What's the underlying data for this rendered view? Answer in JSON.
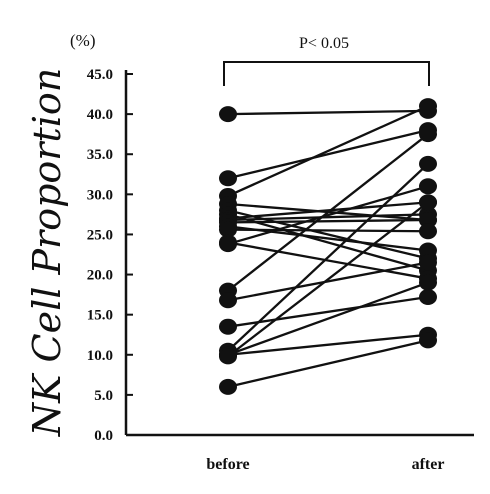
{
  "chart_data": {
    "type": "scatter",
    "subtype": "paired-slope",
    "ylabel": "NK Cell Proportion",
    "unit": "(%)",
    "categories": [
      "before",
      "after"
    ],
    "ylim": [
      0,
      45
    ],
    "yticks": [
      "0.0",
      "5.0",
      "10.0",
      "15.0",
      "20.0",
      "25.0",
      "30.0",
      "35.0",
      "40.0",
      "45.0"
    ],
    "significance": {
      "label": "P< 0.05",
      "between": [
        "before",
        "after"
      ]
    },
    "pairs": [
      {
        "before": 40.0,
        "after": 40.4
      },
      {
        "before": 32.0,
        "after": 38.0
      },
      {
        "before": 29.8,
        "after": 41.0
      },
      {
        "before": 28.8,
        "after": 26.8
      },
      {
        "before": 28.0,
        "after": 22.0
      },
      {
        "before": 27.5,
        "after": 20.5
      },
      {
        "before": 27.0,
        "after": 29.0
      },
      {
        "before": 26.8,
        "after": 27.5
      },
      {
        "before": 26.5,
        "after": 26.8
      },
      {
        "before": 26.0,
        "after": 23.0
      },
      {
        "before": 25.6,
        "after": 25.4
      },
      {
        "before": 24.0,
        "after": 19.5
      },
      {
        "before": 23.8,
        "after": 31.0
      },
      {
        "before": 18.0,
        "after": 37.5
      },
      {
        "before": 16.8,
        "after": 21.5
      },
      {
        "before": 13.5,
        "after": 17.2
      },
      {
        "before": 10.5,
        "after": 33.8
      },
      {
        "before": 10.0,
        "after": 19.0
      },
      {
        "before": 10.0,
        "after": 12.5
      },
      {
        "before": 9.8,
        "after": 29.0
      },
      {
        "before": 6.0,
        "after": 11.8
      }
    ],
    "colors": {
      "ink": "#111111"
    }
  }
}
